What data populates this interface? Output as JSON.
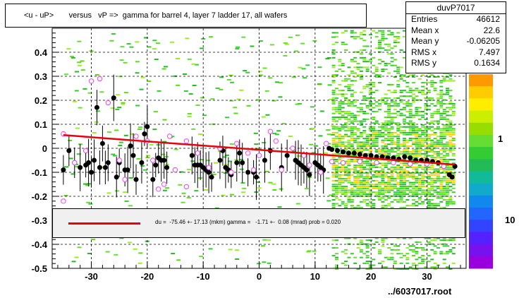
{
  "title": "<u - uP>       versus   vP =>  gamma for barrel 4, layer 7 ladder 17, all wafers",
  "stats": {
    "name": "duvP7017",
    "rows": [
      {
        "label": "Entries",
        "value": "46612"
      },
      {
        "label": "Mean x",
        "value": "22.6"
      },
      {
        "label": "Mean y",
        "value": "-0.06205"
      },
      {
        "label": "RMS x",
        "value": "7.497"
      },
      {
        "label": "RMS y",
        "value": "0.1634"
      }
    ]
  },
  "fit_legend": "du =  -75.46 +- 17.13 (mkm) gamma =   -1.71 +-  0.08 (mrad) prob = 0.020",
  "footer": "../6037017.root",
  "colors": {
    "fit_line": "#e8000b",
    "profile_marker": "#000000",
    "open_marker": "#ee44ee",
    "legend_fill": "#f0f0f0"
  },
  "chart_data": {
    "type": "scatter",
    "xlim": [
      -37,
      37
    ],
    "ylim": [
      -0.5,
      0.5
    ],
    "x_ticks": [
      -30,
      -20,
      -10,
      0,
      10,
      20,
      30
    ],
    "y_ticks": [
      -0.5,
      -0.4,
      -0.3,
      -0.2,
      -0.1,
      0,
      0.1,
      0.2,
      0.3,
      0.4
    ],
    "x_tick_labels": [
      "-30",
      "-20",
      "-10",
      "0",
      "10",
      "20",
      "30"
    ],
    "y_tick_labels": [
      "-0.5",
      "-0.4",
      "-0.3",
      "-0.2",
      "-0.1",
      "0",
      "0.1",
      "0.2",
      "0.3",
      "0.4"
    ],
    "color_scale_labels": [
      "1",
      "10"
    ],
    "grid": true,
    "fit_line": {
      "x": [
        -35,
        35
      ],
      "y": [
        0.055,
        -0.068
      ]
    },
    "profile_points": [
      [
        -35,
        -0.09
      ],
      [
        -34,
        -0.01
      ],
      [
        -33,
        -0.06
      ],
      [
        -32,
        -0.08
      ],
      [
        -31,
        -0.07
      ],
      [
        -30.5,
        -0.06
      ],
      [
        -30,
        -0.1
      ],
      [
        -29.5,
        -0.05
      ],
      [
        -29,
        0.17
      ],
      [
        -28.5,
        -0.08
      ],
      [
        -28,
        0.02
      ],
      [
        -27.5,
        -0.08
      ],
      [
        -27,
        -0.06
      ],
      [
        -26,
        0.21
      ],
      [
        -25.5,
        -0.12
      ],
      [
        -25,
        -0.06
      ],
      [
        -24,
        -0.09
      ],
      [
        -23.5,
        -0.09
      ],
      [
        -23,
        0.01
      ],
      [
        -22.5,
        -0.03
      ],
      [
        -22,
        -0.13
      ],
      [
        -21,
        -0.06
      ],
      [
        -20.5,
        0.06
      ],
      [
        -20,
        0.09
      ],
      [
        -19,
        -0.13
      ],
      [
        -18.5,
        -0.07
      ],
      [
        -18,
        -0.04
      ],
      [
        -17.5,
        -0.05
      ],
      [
        -17,
        -0.05
      ],
      [
        -16.5,
        -0.08
      ],
      [
        -12,
        -0.03
      ],
      [
        -11.5,
        -0.07
      ],
      [
        -11,
        -0.07
      ],
      [
        -10.5,
        -0.07
      ],
      [
        -10,
        -0.08
      ],
      [
        -9.5,
        -0.09
      ],
      [
        -9,
        -0.1
      ],
      [
        -8.5,
        -0.12
      ],
      [
        -7,
        -0.05
      ],
      [
        -6.5,
        -0.01
      ],
      [
        -6,
        -0.08
      ],
      [
        -5.5,
        -0.09
      ],
      [
        -5,
        -0.11
      ],
      [
        -4,
        -0.06
      ],
      [
        -3.5,
        -0.02
      ],
      [
        -3,
        -0.06
      ],
      [
        -2,
        -0.1
      ],
      [
        -1,
        -0.1
      ],
      [
        -0.5,
        -0.12
      ],
      [
        1,
        -0.05
      ],
      [
        2,
        -0.01
      ],
      [
        4,
        -0.08
      ],
      [
        5,
        -0.03
      ],
      [
        6.5,
        -0.05
      ],
      [
        7,
        -0.06
      ],
      [
        7.5,
        -0.07
      ],
      [
        8,
        -0.08
      ],
      [
        8.5,
        -0.09
      ],
      [
        9,
        -0.11
      ],
      [
        10,
        -0.06
      ],
      [
        10.5,
        -0.07
      ],
      [
        11,
        -0.08
      ],
      [
        11.5,
        -0.09
      ],
      [
        12.5,
        0.0
      ],
      [
        13,
        -0.005
      ],
      [
        14,
        -0.01
      ],
      [
        15,
        -0.015
      ],
      [
        16,
        -0.02
      ],
      [
        17,
        -0.02
      ],
      [
        18,
        -0.025
      ],
      [
        19,
        -0.03
      ],
      [
        20,
        -0.03
      ],
      [
        21,
        -0.035
      ],
      [
        22,
        -0.035
      ],
      [
        23,
        -0.04
      ],
      [
        24,
        -0.04
      ],
      [
        25,
        -0.045
      ],
      [
        26,
        -0.035
      ],
      [
        27,
        -0.04
      ],
      [
        28,
        -0.05
      ],
      [
        29,
        -0.05
      ],
      [
        30,
        -0.05
      ],
      [
        31,
        -0.055
      ],
      [
        32,
        -0.06
      ],
      [
        33,
        -0.075
      ],
      [
        34,
        -0.11
      ],
      [
        34.5,
        -0.12
      ],
      [
        35,
        -0.075
      ]
    ],
    "open_points": [
      [
        -35,
        -0.22
      ],
      [
        -35,
        0.06
      ],
      [
        -33,
        -0.06
      ],
      [
        -31,
        -0.01
      ],
      [
        -30,
        0.28
      ],
      [
        -28.5,
        0.29
      ],
      [
        -27,
        0.19
      ],
      [
        -25,
        -0.05
      ],
      [
        -24,
        -0.13
      ],
      [
        -22,
        0.05
      ],
      [
        -20,
        0.03
      ],
      [
        -19,
        -0.05
      ],
      [
        -18,
        -0.17
      ],
      [
        -17,
        -0.15
      ],
      [
        -16,
        0.05
      ],
      [
        -15,
        -0.09
      ],
      [
        -13,
        0.03
      ],
      [
        -13,
        -0.16
      ],
      [
        -11,
        -0.02
      ],
      [
        -9,
        -0.08
      ],
      [
        -7,
        0.0
      ],
      [
        -5,
        -0.1
      ],
      [
        -4,
        0.02
      ],
      [
        -2,
        -0.02
      ],
      [
        -1,
        -0.09
      ],
      [
        0,
        -0.03
      ],
      [
        2,
        0.07
      ],
      [
        3,
        0.03
      ],
      [
        4,
        -0.09
      ],
      [
        6,
        0.0
      ],
      [
        8,
        -0.03
      ],
      [
        9,
        -0.07
      ],
      [
        11,
        -0.1
      ],
      [
        12,
        0.02
      ],
      [
        13,
        -0.055
      ],
      [
        15,
        -0.06
      ],
      [
        18,
        -0.055
      ],
      [
        21,
        -0.06
      ],
      [
        24,
        -0.06
      ],
      [
        27,
        -0.065
      ],
      [
        30,
        -0.065
      ],
      [
        33,
        -0.075
      ]
    ]
  }
}
